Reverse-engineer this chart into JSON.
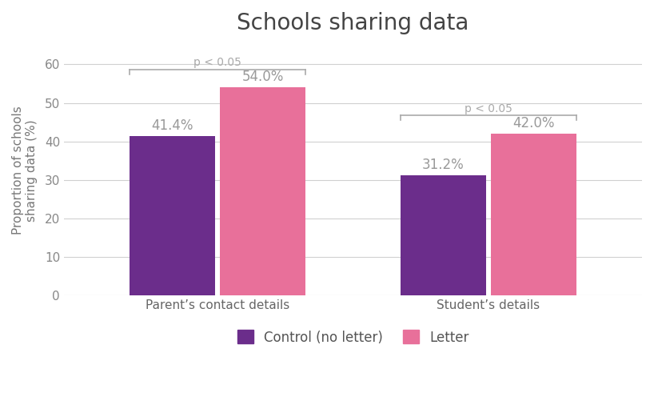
{
  "title": "Schools sharing data",
  "ylabel": "Proportion of schools\nsharing data (%)",
  "groups": [
    "Parent’s contact details",
    "Student’s details"
  ],
  "control_values": [
    41.4,
    31.2
  ],
  "letter_values": [
    54.0,
    42.0
  ],
  "control_color": "#6B2D8B",
  "letter_color": "#E8709A",
  "ylim": [
    0,
    65
  ],
  "yticks": [
    0,
    10,
    20,
    30,
    40,
    50,
    60
  ],
  "bar_width": 0.38,
  "group_centers": [
    0.0,
    1.2
  ],
  "significance_label": "p < 0.05",
  "legend_control": "Control (no letter)",
  "legend_letter": "Letter",
  "title_fontsize": 20,
  "label_fontsize": 11,
  "tick_fontsize": 11,
  "annotation_fontsize": 12,
  "sig_fontsize": 10,
  "background_color": "#ffffff",
  "grid_color": "#d0d0d0",
  "text_color": "#999999"
}
